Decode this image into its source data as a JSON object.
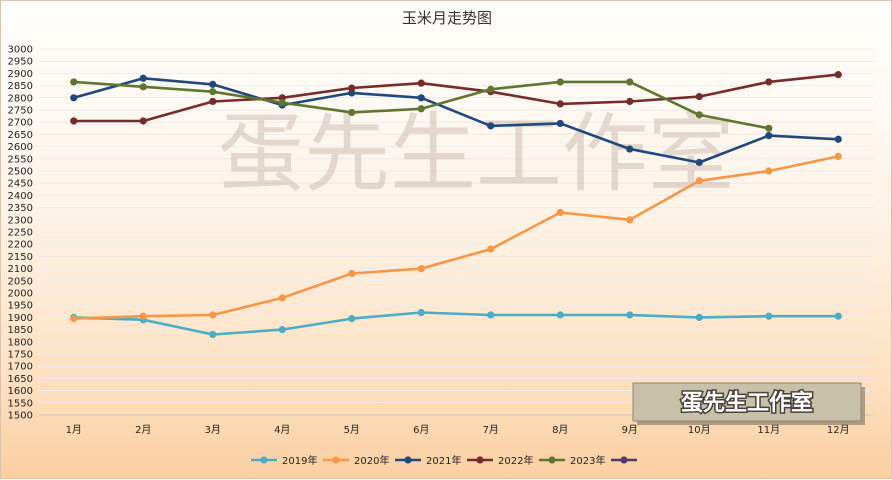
{
  "chart_data": {
    "type": "line",
    "title": "玉米月走势图",
    "xlabel": "",
    "ylabel": "",
    "categories": [
      "1月",
      "2月",
      "3月",
      "4月",
      "5月",
      "6月",
      "7月",
      "8月",
      "9月",
      "10月",
      "11月",
      "12月"
    ],
    "ylim": [
      1500,
      3000
    ],
    "yticks": [
      1500,
      1550,
      1600,
      1650,
      1700,
      1750,
      1800,
      1850,
      1900,
      1950,
      2000,
      2050,
      2100,
      2150,
      2200,
      2250,
      2300,
      2350,
      2400,
      2450,
      2500,
      2550,
      2600,
      2650,
      2700,
      2750,
      2800,
      2850,
      2900,
      2950,
      3000
    ],
    "grid": true,
    "legend_position": "bottom",
    "series": [
      {
        "name": "2019年",
        "color": "#4bacc6",
        "values": [
          1900,
          1890,
          1830,
          1850,
          1895,
          1920,
          1910,
          1910,
          1910,
          1900,
          1905,
          1905
        ]
      },
      {
        "name": "2020年",
        "color": "#f79646",
        "values": [
          1895,
          1905,
          1910,
          1980,
          2080,
          2100,
          2180,
          2330,
          2300,
          2460,
          2500,
          2560
        ]
      },
      {
        "name": "2021年",
        "color": "#1f497d",
        "values": [
          2800,
          2880,
          2855,
          2770,
          2820,
          2800,
          2685,
          2695,
          2590,
          2535,
          2645,
          2630
        ]
      },
      {
        "name": "2022年",
        "color": "#772c2a",
        "values": [
          2705,
          2705,
          2785,
          2800,
          2840,
          2860,
          2825,
          2775,
          2785,
          2805,
          2865,
          2895
        ]
      },
      {
        "name": "2023年",
        "color": "#5f7530",
        "values": [
          2865,
          2845,
          2825,
          2780,
          2740,
          2755,
          2835,
          2865,
          2865,
          2730,
          2675,
          null
        ]
      },
      {
        "name": "",
        "color": "#4f3b6b",
        "values": [
          null,
          null,
          null,
          null,
          null,
          null,
          null,
          null,
          null,
          null,
          null,
          null
        ]
      }
    ]
  },
  "watermark": {
    "text": "蛋先生工作室",
    "badge_text": "蛋先生工作室"
  }
}
